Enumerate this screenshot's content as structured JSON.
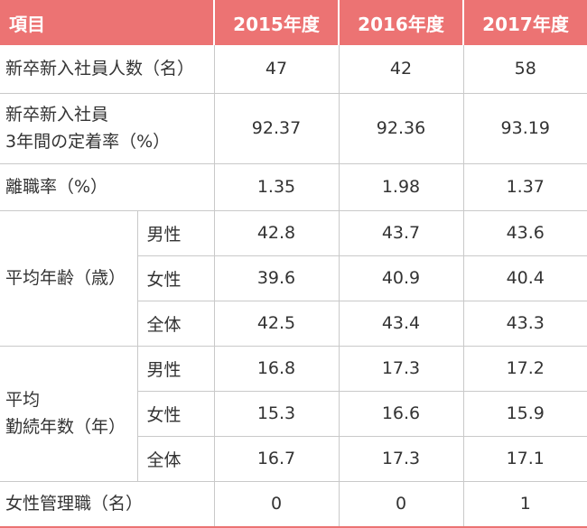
{
  "table": {
    "header": [
      "項目",
      "2015年度",
      "2016年度",
      "2017年度"
    ],
    "rows": [
      {
        "label": [
          "新卒新入社員人数（名）"
        ],
        "values": [
          "47",
          "42",
          "58"
        ]
      },
      {
        "label": [
          "新卒新入社員",
          "3年間の定着率（%）"
        ],
        "values": [
          "92.37",
          "92.36",
          "93.19"
        ]
      },
      {
        "label": [
          "離職率（%）"
        ],
        "values": [
          "1.35",
          "1.98",
          "1.37"
        ]
      },
      {
        "label": [
          "平均年齢（歳）"
        ],
        "sub": [
          {
            "label": "男性",
            "values": [
              "42.8",
              "43.7",
              "43.6"
            ]
          },
          {
            "label": "女性",
            "values": [
              "39.6",
              "40.9",
              "40.4"
            ]
          },
          {
            "label": "全体",
            "values": [
              "42.5",
              "43.4",
              "43.3"
            ]
          }
        ]
      },
      {
        "label": [
          "平均",
          "勤続年数（年）"
        ],
        "sub": [
          {
            "label": "男性",
            "values": [
              "16.8",
              "17.3",
              "17.2"
            ]
          },
          {
            "label": "女性",
            "values": [
              "15.3",
              "16.6",
              "15.9"
            ]
          },
          {
            "label": "全体",
            "values": [
              "16.7",
              "17.3",
              "17.1"
            ]
          }
        ]
      },
      {
        "label": [
          "女性管理職（名）"
        ],
        "values": [
          "0",
          "0",
          "1"
        ]
      }
    ]
  }
}
